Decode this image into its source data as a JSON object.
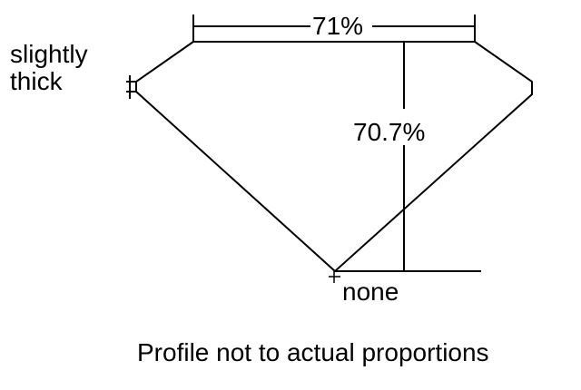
{
  "diagram": {
    "table_label": "71%",
    "depth_label": "70.7%",
    "girdle_label_line1": "slightly",
    "girdle_label_line2": "thick",
    "culet_label": "none",
    "caption": "Profile not to actual proportions"
  }
}
